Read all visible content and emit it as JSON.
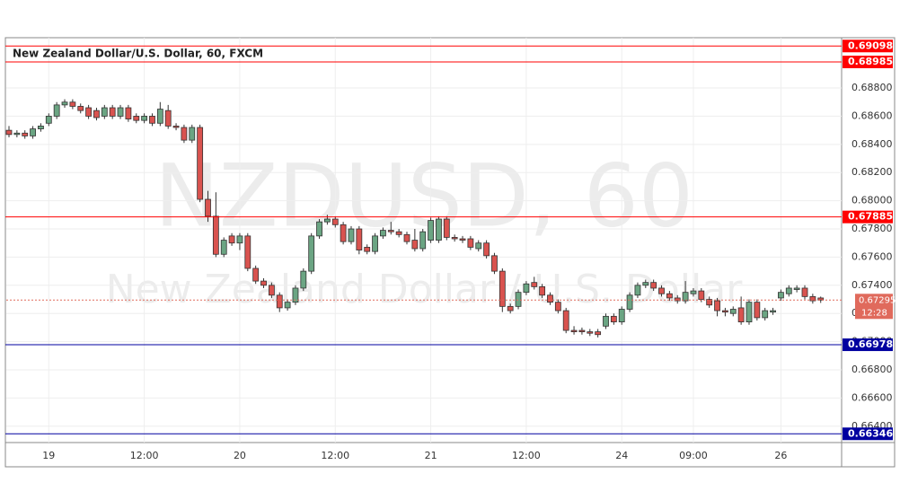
{
  "chart_data": {
    "type": "candlestick",
    "title": "New Zealand Dollar/U.S. Dollar, 60, FXCM",
    "watermark": "NZDUSD, 60",
    "watermark_subtitle": "New Zealand Dollar / U.S. Dollar",
    "categories": [
      null,
      null,
      null,
      null,
      null,
      "19",
      null,
      null,
      null,
      null,
      null,
      null,
      null,
      null,
      null,
      null,
      null,
      "12:00",
      null,
      null,
      null,
      null,
      null,
      null,
      null,
      null,
      null,
      null,
      null,
      "20",
      null,
      null,
      null,
      null,
      null,
      null,
      null,
      null,
      null,
      null,
      null,
      "12:00",
      null,
      null,
      null,
      null,
      null,
      null,
      null,
      null,
      null,
      null,
      null,
      "21",
      null,
      null,
      null,
      null,
      null,
      null,
      null,
      null,
      null,
      null,
      null,
      "12:00",
      null,
      null,
      null,
      null,
      null,
      null,
      null,
      null,
      null,
      null,
      null,
      "24",
      null,
      null,
      null,
      null,
      null,
      null,
      null,
      null,
      "09:00",
      null,
      null,
      null,
      null,
      null,
      null,
      null,
      null,
      null,
      null,
      "26",
      null,
      null,
      null,
      null,
      null
    ],
    "open": [
      0.685,
      0.6847,
      0.6848,
      0.6846,
      0.6851,
      0.6855,
      0.686,
      0.6868,
      0.687,
      0.6867,
      0.6866,
      0.6864,
      0.686,
      0.6866,
      0.686,
      0.6866,
      0.686,
      0.6857,
      0.686,
      0.6855,
      0.6864,
      0.6853,
      0.6852,
      0.6843,
      0.6852,
      0.6801,
      0.6789,
      0.6762,
      0.6775,
      0.677,
      0.6775,
      0.6752,
      0.6743,
      0.674,
      0.6733,
      0.6724,
      0.6728,
      0.6738,
      0.675,
      0.6775,
      0.6785,
      0.6787,
      0.6783,
      0.6771,
      0.678,
      0.6767,
      0.6764,
      0.6775,
      0.6779,
      0.6778,
      0.6776,
      0.6772,
      0.6766,
      0.6772,
      0.6772,
      0.6787,
      0.6774,
      0.6773,
      0.6773,
      0.6766,
      0.677,
      0.6761,
      0.675,
      0.6725,
      0.6725,
      0.6735,
      0.6742,
      0.6739,
      0.6733,
      0.6728,
      0.6722,
      0.6708,
      0.6708,
      0.6707,
      0.6707,
      0.6711,
      0.6718,
      0.6714,
      0.6723,
      0.6733,
      0.674,
      0.6742,
      0.6738,
      0.6734,
      0.6731,
      0.6729,
      0.6734,
      0.6736,
      0.673,
      0.6729,
      0.6722,
      0.672,
      0.6724,
      0.6714,
      0.6728,
      0.6717,
      0.6721,
      0.6731,
      0.6734,
      0.6737,
      0.6738,
      0.6732,
      0.6731
    ],
    "high": [
      0.6853,
      0.685,
      0.685,
      0.6853,
      0.6855,
      0.6862,
      0.687,
      0.6872,
      0.6872,
      0.6869,
      0.6868,
      0.6866,
      0.6868,
      0.6868,
      0.6868,
      0.6868,
      0.6862,
      0.6862,
      0.6862,
      0.687,
      0.6868,
      0.6855,
      0.6854,
      0.6854,
      0.6854,
      0.6807,
      0.6806,
      0.6774,
      0.6777,
      0.6777,
      0.6777,
      0.6754,
      0.6745,
      0.6742,
      0.6735,
      0.673,
      0.674,
      0.6752,
      0.6777,
      0.6787,
      0.679,
      0.6789,
      0.6785,
      0.6782,
      0.6782,
      0.6769,
      0.6777,
      0.6781,
      0.6785,
      0.678,
      0.6778,
      0.678,
      0.678,
      0.6788,
      0.6789,
      0.6789,
      0.6776,
      0.6775,
      0.6775,
      0.6772,
      0.6772,
      0.6763,
      0.6752,
      0.6727,
      0.6737,
      0.6743,
      0.6746,
      0.6741,
      0.6735,
      0.673,
      0.6724,
      0.6711,
      0.671,
      0.6709,
      0.6709,
      0.672,
      0.672,
      0.6725,
      0.6735,
      0.6742,
      0.6744,
      0.6744,
      0.674,
      0.6736,
      0.6733,
      0.6743,
      0.6738,
      0.6738,
      0.6732,
      0.6731,
      0.6724,
      0.6725,
      0.6732,
      0.673,
      0.673,
      0.6724,
      0.6724,
      0.6737,
      0.674,
      0.674,
      0.674,
      0.6734,
      0.6732
    ],
    "low": [
      0.6845,
      0.6845,
      0.6844,
      0.6844,
      0.6849,
      0.6853,
      0.6858,
      0.6866,
      0.6865,
      0.6862,
      0.6858,
      0.6857,
      0.6858,
      0.6858,
      0.6858,
      0.6856,
      0.6855,
      0.6855,
      0.6853,
      0.6853,
      0.6851,
      0.685,
      0.6841,
      0.6841,
      0.6799,
      0.6785,
      0.676,
      0.676,
      0.6768,
      0.6765,
      0.675,
      0.6741,
      0.6738,
      0.6731,
      0.6721,
      0.6722,
      0.6726,
      0.6736,
      0.6748,
      0.6773,
      0.6783,
      0.6781,
      0.6769,
      0.6769,
      0.6762,
      0.6762,
      0.6762,
      0.6773,
      0.6776,
      0.6774,
      0.6769,
      0.6764,
      0.6764,
      0.677,
      0.677,
      0.6772,
      0.6771,
      0.677,
      0.6765,
      0.6764,
      0.6759,
      0.6748,
      0.6721,
      0.672,
      0.6723,
      0.6733,
      0.6737,
      0.6731,
      0.6726,
      0.672,
      0.6706,
      0.6705,
      0.6705,
      0.6704,
      0.6703,
      0.6709,
      0.6712,
      0.6712,
      0.6721,
      0.6731,
      0.6738,
      0.6736,
      0.6732,
      0.6729,
      0.6727,
      0.6727,
      0.6732,
      0.6728,
      0.6724,
      0.6718,
      0.6718,
      0.6718,
      0.6712,
      0.6712,
      0.6715,
      0.6715,
      0.6719,
      0.6729,
      0.6732,
      0.6735,
      0.673,
      0.6727,
      0.67275
    ],
    "close": [
      0.6847,
      0.6848,
      0.6846,
      0.6851,
      0.6853,
      0.686,
      0.6868,
      0.687,
      0.6867,
      0.6864,
      0.686,
      0.6859,
      0.6866,
      0.686,
      0.6866,
      0.6858,
      0.6857,
      0.686,
      0.6855,
      0.6865,
      0.6853,
      0.6852,
      0.6843,
      0.6852,
      0.6801,
      0.6789,
      0.6762,
      0.6772,
      0.677,
      0.6775,
      0.6752,
      0.6743,
      0.674,
      0.6733,
      0.6724,
      0.6728,
      0.6738,
      0.675,
      0.6775,
      0.6785,
      0.6787,
      0.6783,
      0.6771,
      0.678,
      0.6765,
      0.6764,
      0.6775,
      0.6779,
      0.6778,
      0.6776,
      0.6771,
      0.6766,
      0.6778,
      0.6786,
      0.6787,
      0.6774,
      0.6773,
      0.6772,
      0.6767,
      0.677,
      0.6761,
      0.675,
      0.6725,
      0.6722,
      0.6735,
      0.6741,
      0.6739,
      0.6733,
      0.6728,
      0.6722,
      0.6708,
      0.6707,
      0.6707,
      0.6706,
      0.6705,
      0.6718,
      0.6714,
      0.6723,
      0.6733,
      0.674,
      0.6742,
      0.6738,
      0.6734,
      0.6731,
      0.6729,
      0.6735,
      0.6736,
      0.673,
      0.6726,
      0.6722,
      0.6721,
      0.6723,
      0.6714,
      0.6728,
      0.6717,
      0.6722,
      0.6722,
      0.6735,
      0.6738,
      0.6738,
      0.6732,
      0.6729,
      0.67295
    ],
    "up_color": "#6ba583",
    "down_color": "#d9534f",
    "ylim": [
      0.66284,
      0.69157
    ],
    "yticks": [
      {
        "value": 0.664,
        "label": "0.66400"
      },
      {
        "value": 0.666,
        "label": "0.66600"
      },
      {
        "value": 0.668,
        "label": "0.66800"
      },
      {
        "value": 0.67,
        "label": "0.67000"
      },
      {
        "value": 0.672,
        "label": "0.67200"
      },
      {
        "value": 0.674,
        "label": "0.67400"
      },
      {
        "value": 0.676,
        "label": "0.67600"
      },
      {
        "value": 0.678,
        "label": "0.67800"
      },
      {
        "value": 0.68,
        "label": "0.68000"
      },
      {
        "value": 0.682,
        "label": "0.68200"
      },
      {
        "value": 0.684,
        "label": "0.68400"
      },
      {
        "value": 0.686,
        "label": "0.68600"
      },
      {
        "value": 0.688,
        "label": "0.68800"
      }
    ],
    "grid": true,
    "price_lines": [
      {
        "value": 0.69098,
        "label": "0.69098",
        "color": "#ff0000"
      },
      {
        "value": 0.68985,
        "label": "0.68985",
        "color": "#ff0000"
      },
      {
        "value": 0.67885,
        "label": "0.67885",
        "color": "#ff0000"
      },
      {
        "value": 0.66978,
        "label": "0.66978",
        "color": "#0000a0"
      },
      {
        "value": 0.66346,
        "label": "0.66346",
        "color": "#0000a0"
      }
    ],
    "current_price": {
      "value": 0.67295,
      "label": "0.67295",
      "countdown": "12:28",
      "color": "#e06a5c"
    }
  }
}
